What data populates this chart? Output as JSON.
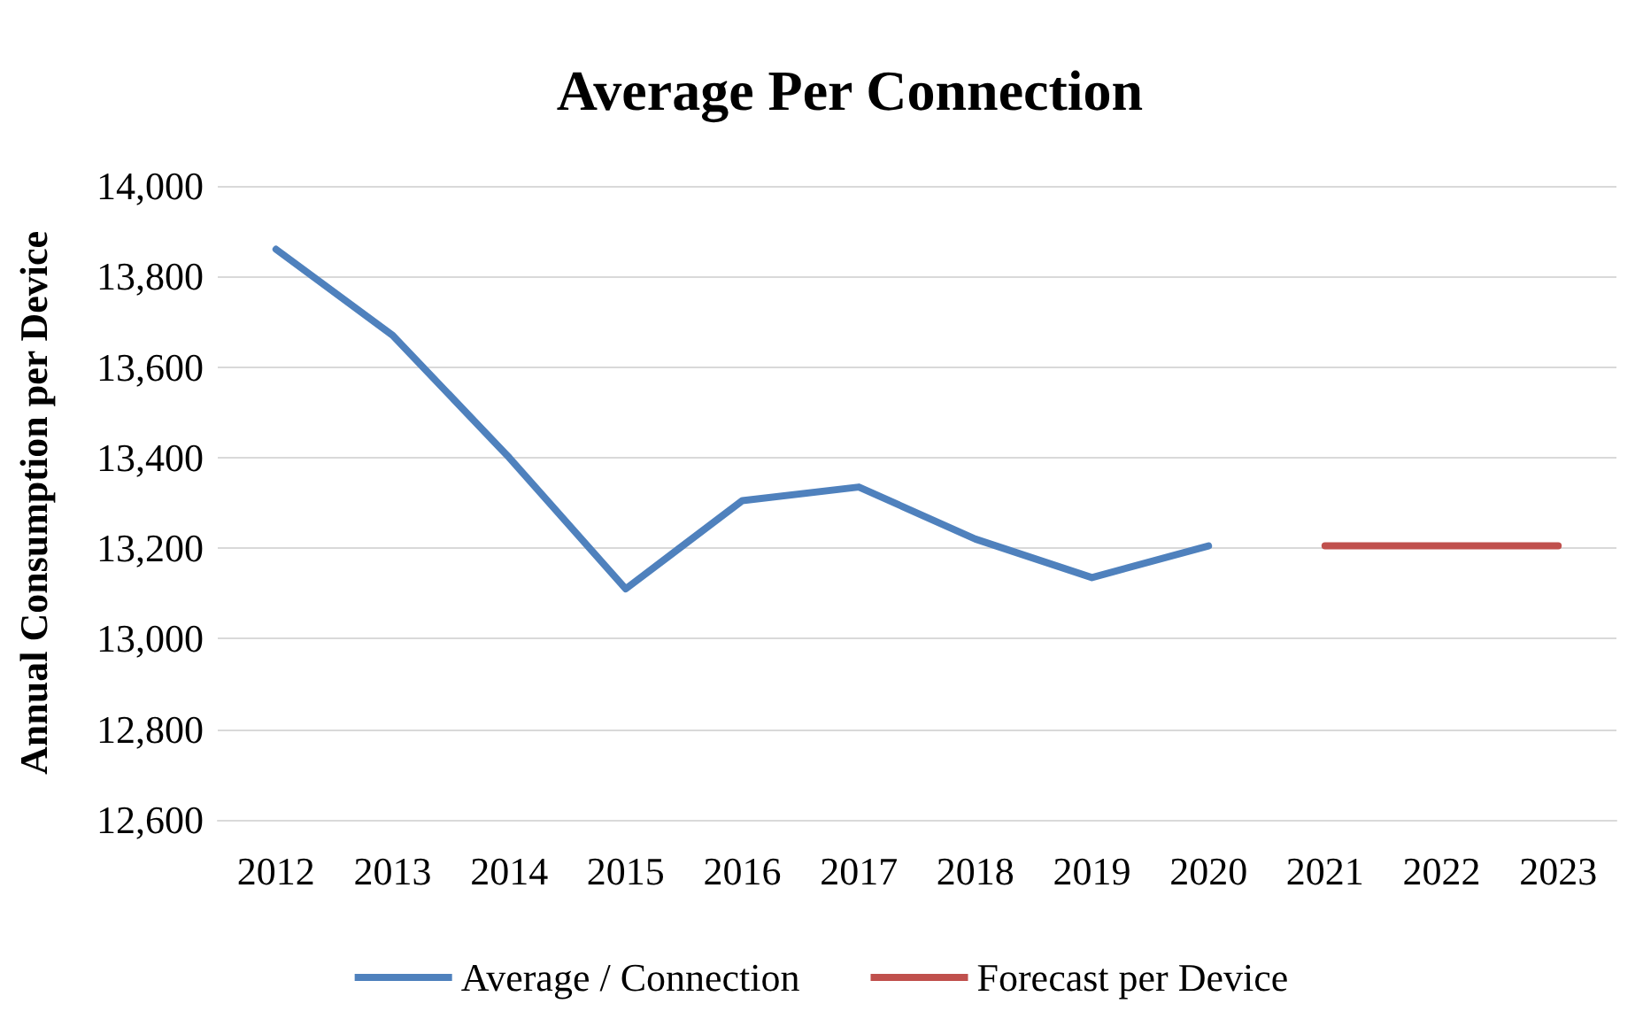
{
  "chart_data": {
    "type": "line",
    "title": "Average Per Connection",
    "ylabel": "Annual Consumption per Device",
    "categories": [
      "2012",
      "2013",
      "2014",
      "2015",
      "2016",
      "2017",
      "2018",
      "2019",
      "2020",
      "2021",
      "2022",
      "2023"
    ],
    "series": [
      {
        "name": "Average / Connection",
        "color": "#4f81bd",
        "values": [
          13860,
          13670,
          13400,
          13110,
          13305,
          13335,
          13220,
          13135,
          13205,
          null,
          null,
          null
        ]
      },
      {
        "name": "Forecast per Device",
        "color": "#c0504d",
        "values": [
          null,
          null,
          null,
          null,
          null,
          null,
          null,
          null,
          null,
          13205,
          13205,
          13205
        ]
      }
    ],
    "ylim": [
      12600,
      14000
    ],
    "yticks": [
      {
        "value": 12600,
        "label": "12,600"
      },
      {
        "value": 12800,
        "label": "12,800"
      },
      {
        "value": 13000,
        "label": "13,000"
      },
      {
        "value": 13200,
        "label": "13,200"
      },
      {
        "value": 13400,
        "label": "13,400"
      },
      {
        "value": 13600,
        "label": "13,600"
      },
      {
        "value": 13800,
        "label": "13,800"
      },
      {
        "value": 14000,
        "label": "14,000"
      }
    ],
    "grid": "y",
    "legend": "bottom",
    "marker": "none",
    "line_style": "solid"
  }
}
